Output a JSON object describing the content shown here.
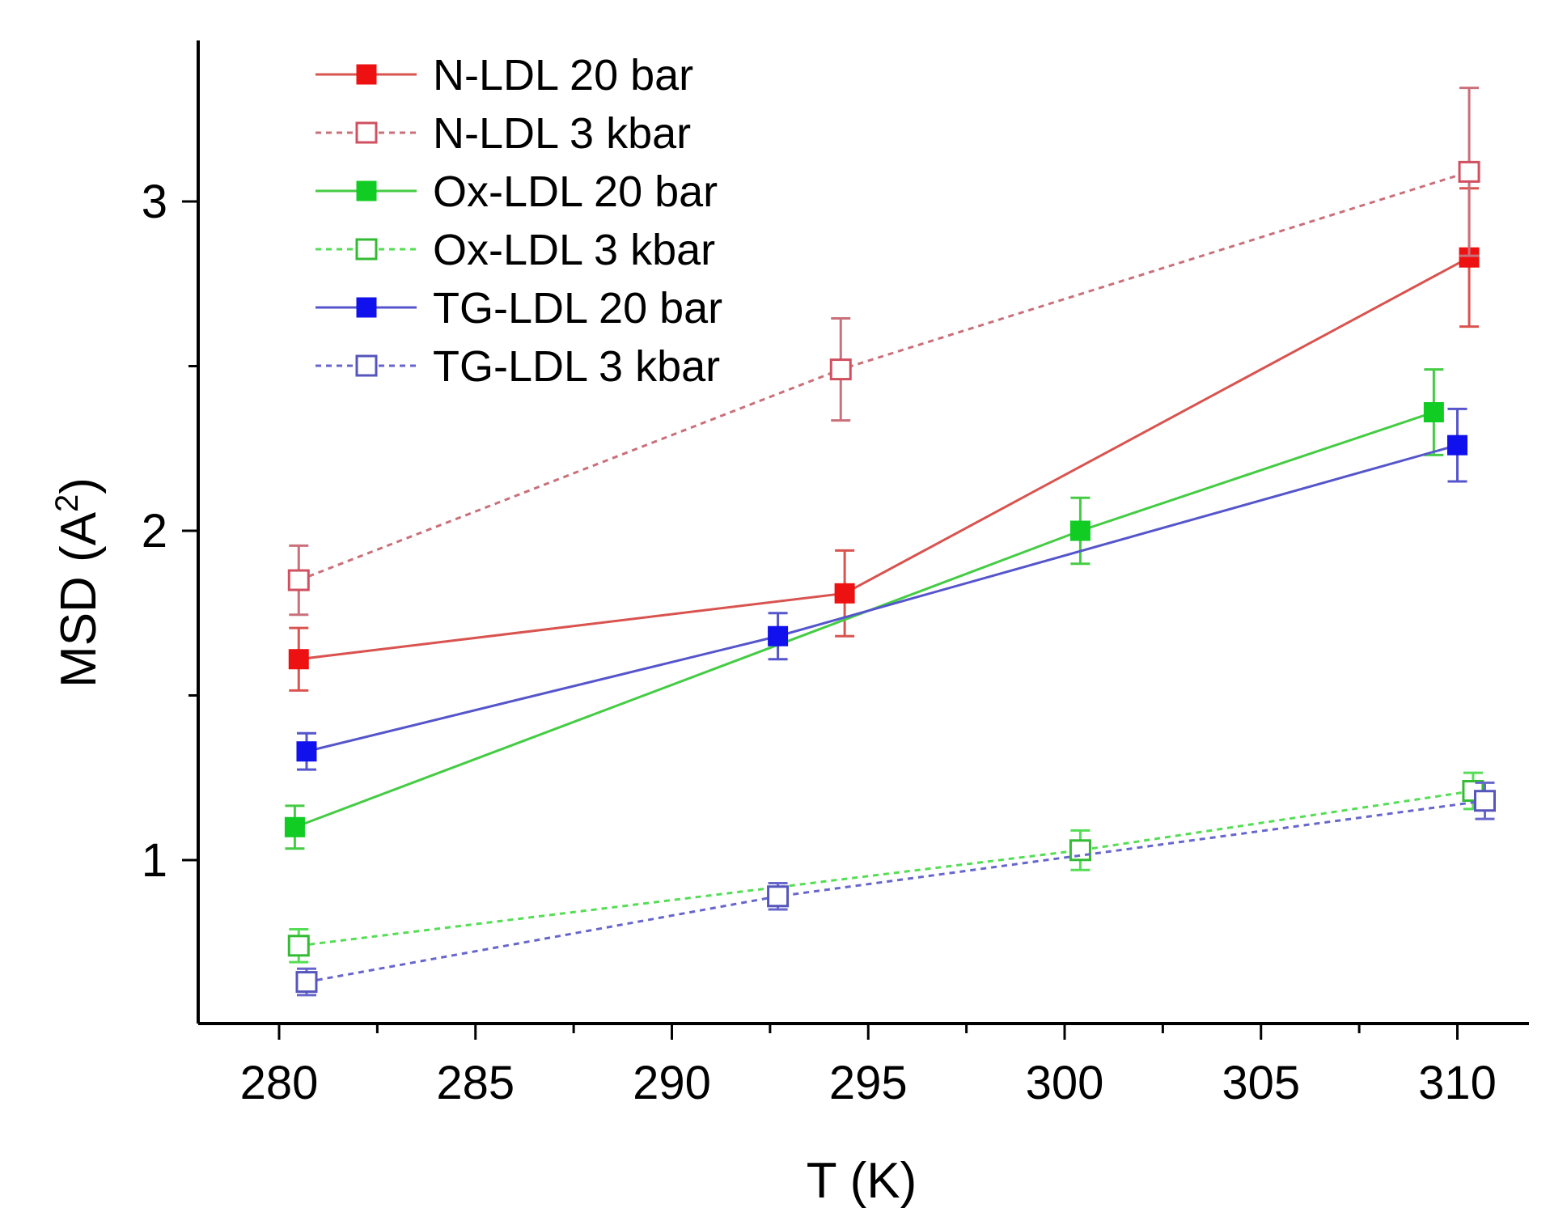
{
  "chart_data": {
    "type": "line",
    "title": "",
    "xlabel": "T (K)",
    "ylabel_main": "MSD (A",
    "ylabel_sup": "2",
    "ylabel_close": ")",
    "xlim": [
      278,
      312
    ],
    "ylim": [
      0.5,
      3.5
    ],
    "xticks": [
      280,
      285,
      290,
      295,
      300,
      305,
      310
    ],
    "xtick_labels": [
      "280",
      "285",
      "290",
      "295",
      "300",
      "305",
      "310"
    ],
    "yticks": [
      1,
      2,
      3
    ],
    "ytick_labels": [
      "1",
      "2",
      "3"
    ],
    "legend_position": "top-left",
    "series": [
      {
        "name": "N-LDL 20 bar",
        "color": "#d9534f",
        "marker_color": "#ee1111",
        "filled": true,
        "dashed": false,
        "points": [
          {
            "x": 280.5,
            "y": 1.61,
            "err": 0.095
          },
          {
            "x": 294.4,
            "y": 1.81,
            "err": 0.13
          },
          {
            "x": 310.3,
            "y": 2.83,
            "err": 0.21
          }
        ]
      },
      {
        "name": "N-LDL 3 kbar",
        "color": "#c9707a",
        "marker_color": "#d05060",
        "filled": false,
        "dashed": true,
        "points": [
          {
            "x": 280.5,
            "y": 1.85,
            "err": 0.105
          },
          {
            "x": 294.3,
            "y": 2.49,
            "err": 0.155
          },
          {
            "x": 310.3,
            "y": 3.09,
            "err": 0.255
          }
        ]
      },
      {
        "name": "Ox-LDL 20 bar",
        "color": "#44cc44",
        "marker_color": "#11cc22",
        "filled": true,
        "dashed": false,
        "points": [
          {
            "x": 280.4,
            "y": 1.1,
            "err": 0.065
          },
          {
            "x": 300.4,
            "y": 2.0,
            "err": 0.1
          },
          {
            "x": 309.4,
            "y": 2.36,
            "err": 0.13
          }
        ]
      },
      {
        "name": "Ox-LDL 3 kbar",
        "color": "#55dd55",
        "marker_color": "#33bb33",
        "filled": false,
        "dashed": true,
        "points": [
          {
            "x": 280.5,
            "y": 0.74,
            "err": 0.05
          },
          {
            "x": 300.4,
            "y": 1.03,
            "err": 0.06
          },
          {
            "x": 310.4,
            "y": 1.21,
            "err": 0.055
          }
        ]
      },
      {
        "name": "TG-LDL 20 bar",
        "color": "#5555cc",
        "marker_color": "#1111ee",
        "filled": true,
        "dashed": false,
        "points": [
          {
            "x": 280.7,
            "y": 1.33,
            "err": 0.055
          },
          {
            "x": 292.7,
            "y": 1.68,
            "err": 0.07
          },
          {
            "x": 310.0,
            "y": 2.26,
            "err": 0.11
          }
        ]
      },
      {
        "name": "TG-LDL 3 kbar",
        "color": "#6666cc",
        "marker_color": "#5555bb",
        "filled": false,
        "dashed": true,
        "points": [
          {
            "x": 280.7,
            "y": 0.63,
            "err": 0.04
          },
          {
            "x": 292.7,
            "y": 0.89,
            "err": 0.04
          },
          {
            "x": 310.7,
            "y": 1.18,
            "err": 0.055
          }
        ]
      }
    ]
  }
}
